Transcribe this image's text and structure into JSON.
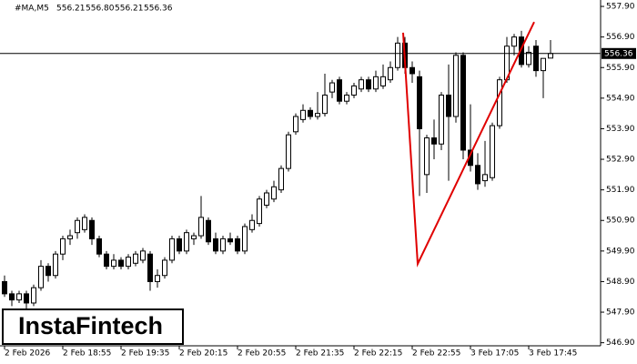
{
  "header": {
    "symbol": "#MA,M5",
    "value_labels": [
      "556.21",
      "556.80",
      "556.21",
      "556.36"
    ]
  },
  "logo": "InstaFintech",
  "chart_data": {
    "type": "candlestick",
    "categories": [
      "2 Feb 2026",
      null,
      null,
      null,
      null,
      null,
      null,
      null,
      "2 Feb 18:55",
      null,
      null,
      null,
      null,
      null,
      null,
      null,
      "2 Feb 19:35",
      null,
      null,
      null,
      null,
      null,
      null,
      null,
      "2 Feb 20:15",
      null,
      null,
      null,
      null,
      null,
      null,
      null,
      "2 Feb 20:55",
      null,
      null,
      null,
      null,
      null,
      null,
      null,
      "2 Feb 21:35",
      null,
      null,
      null,
      null,
      null,
      null,
      null,
      "2 Feb 22:15",
      null,
      null,
      null,
      null,
      null,
      null,
      null,
      "2 Feb 22:55",
      null,
      null,
      null,
      null,
      null,
      null,
      null,
      "3 Feb 17:05",
      null,
      null,
      null,
      null,
      null,
      null,
      null,
      "3 Feb 17:45",
      null,
      null,
      null
    ],
    "open": [
      548.9,
      548.5,
      548.3,
      548.5,
      548.2,
      548.7,
      549.4,
      549.1,
      549.8,
      550.3,
      550.5,
      550.6,
      550.9,
      550.3,
      549.8,
      549.4,
      549.6,
      549.4,
      549.5,
      549.6,
      549.8,
      548.9,
      549.1,
      549.6,
      550.3,
      549.9,
      550.3,
      550.4,
      550.9,
      550.3,
      549.9,
      550.3,
      550.3,
      549.9,
      550.6,
      550.8,
      551.4,
      551.6,
      551.9,
      552.6,
      553.8,
      554.2,
      554.5,
      554.3,
      554.4,
      555.1,
      555.5,
      554.8,
      555.0,
      555.2,
      555.5,
      555.2,
      555.3,
      555.5,
      555.9,
      556.7,
      555.9,
      555.6,
      552.4,
      553.6,
      553.4,
      555.0,
      554.3,
      556.3,
      553.2,
      552.7,
      552.2,
      552.3,
      554.0,
      555.5,
      556.6,
      556.9,
      556.0,
      556.6,
      555.8,
      556.21
    ],
    "high": [
      549.1,
      548.6,
      548.6,
      548.6,
      548.8,
      549.6,
      549.5,
      549.9,
      550.4,
      550.6,
      551.0,
      551.1,
      551.0,
      550.4,
      549.9,
      549.8,
      549.7,
      549.8,
      549.9,
      550.0,
      549.9,
      549.3,
      549.7,
      550.4,
      550.4,
      550.6,
      550.5,
      551.7,
      551.0,
      550.5,
      550.4,
      550.5,
      550.4,
      550.8,
      551.1,
      551.7,
      551.9,
      552.2,
      552.7,
      553.8,
      554.4,
      554.7,
      554.6,
      555.1,
      555.7,
      555.5,
      555.6,
      555.1,
      555.4,
      555.6,
      555.6,
      555.8,
      556.0,
      556.1,
      556.9,
      556.9,
      556.1,
      555.8,
      553.7,
      554.2,
      555.1,
      556.0,
      556.4,
      556.4,
      554.7,
      553.1,
      553.5,
      554.1,
      555.6,
      556.9,
      557.0,
      557.1,
      556.6,
      556.8,
      556.2,
      556.8
    ],
    "low": [
      548.4,
      548.1,
      548.2,
      548.0,
      548.1,
      548.6,
      548.9,
      549.0,
      549.6,
      550.1,
      550.3,
      550.5,
      550.1,
      549.7,
      549.3,
      549.3,
      549.3,
      549.3,
      549.4,
      549.5,
      548.6,
      548.7,
      549.0,
      549.5,
      549.8,
      549.8,
      550.1,
      550.3,
      550.1,
      549.8,
      549.8,
      550.1,
      549.8,
      549.8,
      550.5,
      550.7,
      551.3,
      551.5,
      551.8,
      552.5,
      553.7,
      554.1,
      554.2,
      554.2,
      554.3,
      554.9,
      554.7,
      554.7,
      554.9,
      555.1,
      555.1,
      555.1,
      555.2,
      555.4,
      555.8,
      555.7,
      555.4,
      551.7,
      551.8,
      552.9,
      553.2,
      552.2,
      554.1,
      552.9,
      552.5,
      551.9,
      552.0,
      552.2,
      553.9,
      555.4,
      556.3,
      555.9,
      555.9,
      555.6,
      554.9,
      556.21
    ],
    "close": [
      548.5,
      548.3,
      548.5,
      548.2,
      548.7,
      549.4,
      549.1,
      549.8,
      550.3,
      550.4,
      550.9,
      551.0,
      550.3,
      549.8,
      549.4,
      549.6,
      549.4,
      549.7,
      549.8,
      549.9,
      548.9,
      549.1,
      549.6,
      550.3,
      549.9,
      550.5,
      550.4,
      551.0,
      550.2,
      549.9,
      550.3,
      550.2,
      549.9,
      550.7,
      550.9,
      551.6,
      551.8,
      552.0,
      552.6,
      553.7,
      554.3,
      554.5,
      554.3,
      554.4,
      555.0,
      555.4,
      554.8,
      555.0,
      555.3,
      555.5,
      555.2,
      555.6,
      555.6,
      555.9,
      556.7,
      555.9,
      555.7,
      553.9,
      553.6,
      553.4,
      555.0,
      554.3,
      556.3,
      553.2,
      552.7,
      552.1,
      552.4,
      554.0,
      555.5,
      556.6,
      556.9,
      556.0,
      556.4,
      555.8,
      556.2,
      556.36
    ],
    "up_color": "#ffffff",
    "down_color": "#000000",
    "edge_color": "#000000",
    "ylim": [
      546.8,
      558.11
    ],
    "yticks": [
      {
        "value": 557.9,
        "label": "557.90"
      },
      {
        "value": 556.9,
        "label": "556.90"
      },
      {
        "value": 555.9,
        "label": "555.90"
      },
      {
        "value": 554.9,
        "label": "554.90"
      },
      {
        "value": 553.9,
        "label": "553.90"
      },
      {
        "value": 552.9,
        "label": "552.90"
      },
      {
        "value": 551.9,
        "label": "551.90"
      },
      {
        "value": 550.9,
        "label": "550.90"
      },
      {
        "value": 549.9,
        "label": "549.90"
      },
      {
        "value": 548.9,
        "label": "548.90"
      },
      {
        "value": 547.9,
        "label": "547.90"
      },
      {
        "value": 546.9,
        "label": "546.90"
      }
    ],
    "current_price": {
      "value": 556.36,
      "label": "556.36"
    },
    "pattern_line": {
      "color": "#e00000",
      "x": [
        54.75,
        56.75,
        72.75
      ],
      "y": [
        557.04,
        549.48,
        557.39
      ]
    }
  }
}
